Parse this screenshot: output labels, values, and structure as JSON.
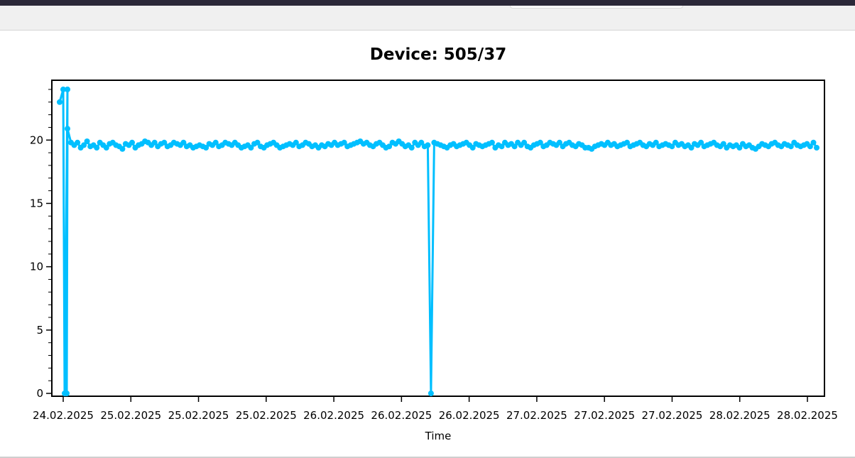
{
  "chart_data": {
    "type": "line",
    "title": "Device: 505/37",
    "xlabel": "Time",
    "ylabel": "",
    "ylim": [
      0,
      24.5
    ],
    "yticks": [
      0,
      5,
      10,
      15,
      20
    ],
    "xtick_labels": [
      "24.02.2025",
      "25.02.2025",
      "25.02.2025",
      "25.02.2025",
      "26.02.2025",
      "26.02.2025",
      "26.02.2025",
      "27.02.2025",
      "27.02.2025",
      "27.02.2025",
      "28.02.2025",
      "28.02.2025"
    ],
    "grid": false,
    "legend": "none",
    "series_color": "#00bfff",
    "series": [
      {
        "values": [
          23.0,
          24.0,
          0.0,
          24.0,
          0.0,
          20.9,
          19.8,
          19.6,
          19.8,
          19.4,
          19.6,
          19.9,
          19.5,
          19.6,
          19.4,
          19.8,
          19.6,
          19.4,
          19.7,
          19.8,
          19.6,
          19.5,
          19.3,
          19.7,
          19.6,
          19.8,
          19.4,
          19.6,
          19.7,
          19.9,
          19.8,
          19.6,
          19.8,
          19.5,
          19.7,
          19.8,
          19.5,
          19.6,
          19.8,
          19.7,
          19.6,
          19.8,
          19.5,
          19.6,
          19.4,
          19.5,
          19.6,
          19.5,
          19.4,
          19.7,
          19.6,
          19.8,
          19.5,
          19.6,
          19.8,
          19.7,
          19.6,
          19.8,
          19.6,
          19.4,
          19.5,
          19.6,
          19.4,
          19.7,
          19.8,
          19.5,
          19.4,
          19.6,
          19.7,
          19.8,
          19.6,
          19.4,
          19.5,
          19.6,
          19.7,
          19.6,
          19.8,
          19.5,
          19.6,
          19.8,
          19.7,
          19.5,
          19.6,
          19.4,
          19.6,
          19.5,
          19.7,
          19.6,
          19.8,
          19.6,
          19.7,
          19.8,
          19.5,
          19.6,
          19.7,
          19.8,
          19.9,
          19.7,
          19.8,
          19.6,
          19.5,
          19.7,
          19.8,
          19.6,
          19.4,
          19.5,
          19.8,
          19.7,
          19.9,
          19.7,
          19.5,
          19.6,
          19.4,
          19.8,
          19.6,
          19.8,
          19.5,
          19.6,
          0.0,
          19.8,
          19.7,
          19.6,
          19.5,
          19.4,
          19.6,
          19.7,
          19.5,
          19.6,
          19.7,
          19.8,
          19.6,
          19.4,
          19.7,
          19.6,
          19.5,
          19.6,
          19.7,
          19.8,
          19.4,
          19.6,
          19.5,
          19.8,
          19.6,
          19.7,
          19.5,
          19.8,
          19.6,
          19.8,
          19.5,
          19.4,
          19.6,
          19.7,
          19.8,
          19.5,
          19.6,
          19.8,
          19.7,
          19.6,
          19.8,
          19.5,
          19.7,
          19.8,
          19.6,
          19.5,
          19.7,
          19.6,
          19.4,
          19.4,
          19.3,
          19.5,
          19.6,
          19.7,
          19.6,
          19.8,
          19.6,
          19.7,
          19.5,
          19.6,
          19.7,
          19.8,
          19.5,
          19.6,
          19.7,
          19.8,
          19.6,
          19.5,
          19.7,
          19.6,
          19.8,
          19.5,
          19.6,
          19.7,
          19.6,
          19.5,
          19.8,
          19.6,
          19.7,
          19.5,
          19.6,
          19.4,
          19.7,
          19.6,
          19.8,
          19.5,
          19.6,
          19.7,
          19.8,
          19.6,
          19.5,
          19.7,
          19.4,
          19.6,
          19.5,
          19.6,
          19.4,
          19.7,
          19.5,
          19.6,
          19.4,
          19.3,
          19.5,
          19.7,
          19.6,
          19.5,
          19.7,
          19.8,
          19.6,
          19.5,
          19.7,
          19.6,
          19.5,
          19.8,
          19.6,
          19.5,
          19.6,
          19.7,
          19.5,
          19.8,
          19.4
        ]
      }
    ]
  }
}
